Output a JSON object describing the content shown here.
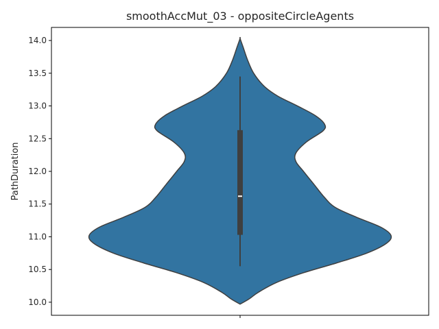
{
  "chart_data": {
    "type": "violin",
    "title": "smoothAccMut_03 - oppositeCircleAgents",
    "xlabel": "",
    "ylabel": "PathDuration",
    "ylim": [
      9.8,
      14.2
    ],
    "yticks": [
      "10.0",
      "10.5",
      "11.0",
      "11.5",
      "12.0",
      "12.5",
      "13.0",
      "13.5",
      "14.0"
    ],
    "xticks": [
      ""
    ],
    "grid": false,
    "colors": {
      "fill": "#3274a1",
      "edge": "#3f3f3f",
      "box": "#3f3f3f",
      "median": "#ffffff"
    },
    "density_profile": [
      {
        "y": 9.97,
        "w": 0.0
      },
      {
        "y": 10.05,
        "w": 0.06
      },
      {
        "y": 10.15,
        "w": 0.12
      },
      {
        "y": 10.3,
        "w": 0.24
      },
      {
        "y": 10.45,
        "w": 0.42
      },
      {
        "y": 10.6,
        "w": 0.64
      },
      {
        "y": 10.75,
        "w": 0.84
      },
      {
        "y": 10.9,
        "w": 0.97
      },
      {
        "y": 11.02,
        "w": 1.0
      },
      {
        "y": 11.15,
        "w": 0.93
      },
      {
        "y": 11.3,
        "w": 0.77
      },
      {
        "y": 11.45,
        "w": 0.63
      },
      {
        "y": 11.6,
        "w": 0.56
      },
      {
        "y": 11.8,
        "w": 0.49
      },
      {
        "y": 12.0,
        "w": 0.42
      },
      {
        "y": 12.15,
        "w": 0.37
      },
      {
        "y": 12.28,
        "w": 0.37
      },
      {
        "y": 12.45,
        "w": 0.44
      },
      {
        "y": 12.62,
        "w": 0.55
      },
      {
        "y": 12.72,
        "w": 0.56
      },
      {
        "y": 12.85,
        "w": 0.5
      },
      {
        "y": 13.0,
        "w": 0.38
      },
      {
        "y": 13.15,
        "w": 0.25
      },
      {
        "y": 13.3,
        "w": 0.16
      },
      {
        "y": 13.5,
        "w": 0.09
      },
      {
        "y": 13.7,
        "w": 0.05
      },
      {
        "y": 13.9,
        "w": 0.02
      },
      {
        "y": 14.03,
        "w": 0.0
      }
    ],
    "box": {
      "q1": 11.03,
      "median": 11.62,
      "q3": 12.63,
      "whisker_low": 10.55,
      "whisker_high": 13.45
    }
  }
}
